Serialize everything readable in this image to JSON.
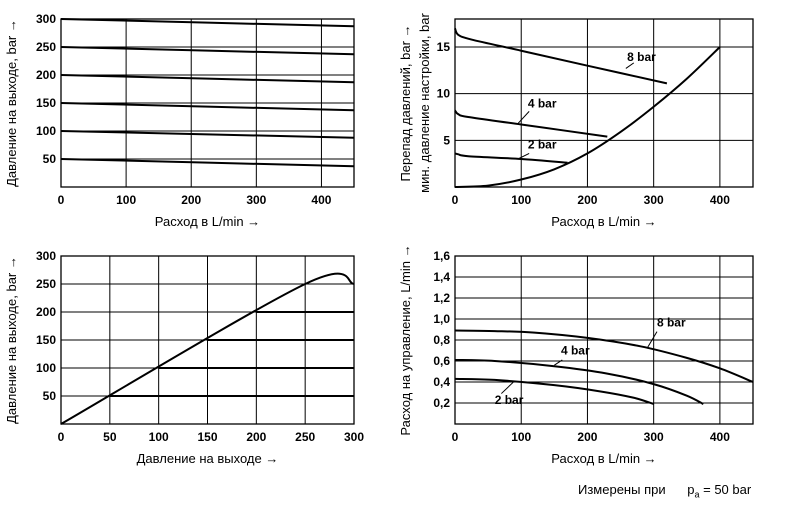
{
  "footnote": {
    "text": "Измерены при",
    "sym": "p",
    "sub": "a",
    "value": "= 50 bar"
  },
  "chart_data": [
    {
      "id": "c1",
      "type": "line",
      "xlabel": "Расход в L/min  →",
      "ylabel": "Давление на выходе, bar  →",
      "xlim": [
        0,
        450
      ],
      "ylim": [
        0,
        300
      ],
      "xticks": [
        0,
        100,
        200,
        300,
        400
      ],
      "yticks": [
        50,
        100,
        150,
        200,
        250,
        300
      ],
      "grid": true,
      "series": [
        {
          "points": [
            [
              0,
              50
            ],
            [
              450,
              37
            ]
          ]
        },
        {
          "points": [
            [
              0,
              100
            ],
            [
              450,
              88
            ]
          ]
        },
        {
          "points": [
            [
              0,
              150
            ],
            [
              450,
              137
            ]
          ]
        },
        {
          "points": [
            [
              0,
              200
            ],
            [
              450,
              187
            ]
          ]
        },
        {
          "points": [
            [
              0,
              250
            ],
            [
              450,
              237
            ]
          ]
        },
        {
          "points": [
            [
              0,
              300
            ],
            [
              450,
              287
            ]
          ]
        }
      ],
      "annotations": []
    },
    {
      "id": "c2",
      "type": "line",
      "xlabel": "Расход в L/min  →",
      "ylabel": "Перепад давлений, bar  →",
      "ylabel2": "мин. давление настройки, bar",
      "xlim": [
        0,
        450
      ],
      "ylim": [
        0,
        18
      ],
      "xticks": [
        0,
        100,
        200,
        300,
        400
      ],
      "yticks": [
        5,
        10,
        15
      ],
      "grid": true,
      "series": [
        {
          "name": "8 bar",
          "points": [
            [
              0,
              17.0
            ],
            [
              5,
              16.3
            ],
            [
              25,
              15.8
            ],
            [
              100,
              14.6
            ],
            [
              200,
              13.0
            ],
            [
              320,
              11.1
            ]
          ]
        },
        {
          "name": "4 bar",
          "points": [
            [
              0,
              8.2
            ],
            [
              5,
              7.8
            ],
            [
              20,
              7.5
            ],
            [
              100,
              6.7
            ],
            [
              230,
              5.4
            ]
          ]
        },
        {
          "name": "2 bar",
          "points": [
            [
              0,
              3.6
            ],
            [
              5,
              3.5
            ],
            [
              20,
              3.3
            ],
            [
              100,
              3.0
            ],
            [
              170,
              2.6
            ]
          ]
        },
        {
          "points": [
            [
              0,
              0
            ],
            [
              50,
              0.15
            ],
            [
              100,
              0.8
            ],
            [
              150,
              1.9
            ],
            [
              200,
              3.6
            ],
            [
              250,
              5.9
            ],
            [
              300,
              8.6
            ],
            [
              350,
              11.6
            ],
            [
              400,
              15.0
            ]
          ]
        }
      ],
      "annotations": [
        {
          "text": "8 bar",
          "x": 260,
          "y": 13.5,
          "leader": [
            [
              270,
              13.3
            ],
            [
              258,
              12.7
            ]
          ]
        },
        {
          "text": "4 bar",
          "x": 110,
          "y": 8.5,
          "leader": [
            [
              112,
              8.1
            ],
            [
              95,
              6.8
            ]
          ]
        },
        {
          "text": "2 bar",
          "x": 110,
          "y": 4.1,
          "leader": [
            [
              112,
              3.6
            ],
            [
              95,
              3.0
            ]
          ]
        }
      ]
    },
    {
      "id": "c3",
      "type": "line",
      "xlabel": "Давление на выходе  →",
      "ylabel": "Давление на выходе, bar  →",
      "xlim": [
        0,
        300
      ],
      "ylim": [
        0,
        300
      ],
      "xticks": [
        0,
        50,
        100,
        150,
        200,
        250,
        300
      ],
      "yticks": [
        50,
        100,
        150,
        200,
        250,
        300
      ],
      "grid": true,
      "series": [
        {
          "points": [
            [
              0,
              0
            ],
            [
              250,
              250
            ],
            [
              300,
              250
            ]
          ]
        },
        {
          "points": [
            [
              50,
              50
            ],
            [
              300,
              50
            ]
          ]
        },
        {
          "points": [
            [
              100,
              100
            ],
            [
              300,
              100
            ]
          ]
        },
        {
          "points": [
            [
              150,
              150
            ],
            [
              300,
              150
            ]
          ]
        },
        {
          "points": [
            [
              200,
              200
            ],
            [
              300,
              200
            ]
          ]
        }
      ],
      "annotations": []
    },
    {
      "id": "c4",
      "type": "line",
      "xlabel": "Расход в L/min  →",
      "ylabel": "Расход на управление, L/min  →",
      "xlim": [
        0,
        450
      ],
      "ylim": [
        0,
        1.6
      ],
      "xticks": [
        0,
        100,
        200,
        300,
        400
      ],
      "yticks": [
        0.2,
        0.4,
        0.6,
        0.8,
        1.0,
        1.2,
        1.4,
        1.6
      ],
      "ytick_labels": [
        "0,2",
        "0,4",
        "0,6",
        "0,8",
        "1,0",
        "1,2",
        "1,4",
        "1,6"
      ],
      "grid": true,
      "series": [
        {
          "name": "8 bar",
          "points": [
            [
              0,
              0.89
            ],
            [
              60,
              0.885
            ],
            [
              120,
              0.87
            ],
            [
              200,
              0.82
            ],
            [
              280,
              0.74
            ],
            [
              350,
              0.63
            ],
            [
              400,
              0.53
            ],
            [
              450,
              0.4
            ]
          ]
        },
        {
          "name": "4 bar",
          "points": [
            [
              0,
              0.61
            ],
            [
              60,
              0.6
            ],
            [
              150,
              0.55
            ],
            [
              230,
              0.48
            ],
            [
              300,
              0.38
            ],
            [
              350,
              0.27
            ],
            [
              375,
              0.19
            ]
          ]
        },
        {
          "name": "2 bar",
          "points": [
            [
              0,
              0.43
            ],
            [
              60,
              0.42
            ],
            [
              150,
              0.37
            ],
            [
              220,
              0.31
            ],
            [
              270,
              0.25
            ],
            [
              300,
              0.19
            ]
          ]
        }
      ],
      "annotations": [
        {
          "text": "8 bar",
          "x": 305,
          "y": 0.93,
          "leader": [
            [
              305,
              0.88
            ],
            [
              290,
              0.72
            ]
          ]
        },
        {
          "text": "4 bar",
          "x": 160,
          "y": 0.66,
          "leader": [
            [
              162,
              0.61
            ],
            [
              150,
              0.56
            ]
          ]
        },
        {
          "text": "2 bar",
          "x": 60,
          "y": 0.19,
          "leader": [
            [
              70,
              0.29
            ],
            [
              90,
              0.41
            ]
          ]
        }
      ]
    }
  ]
}
